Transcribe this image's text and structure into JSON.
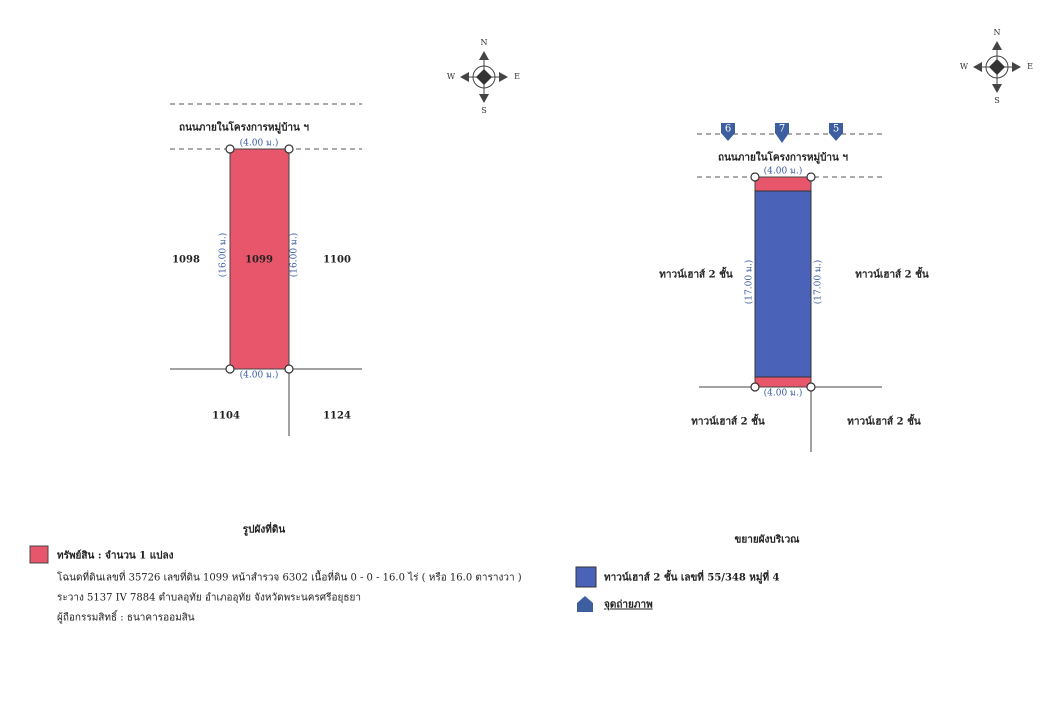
{
  "left_map": {
    "compass": {
      "n": "N",
      "e": "E",
      "s": "S",
      "w": "W"
    },
    "road": "ถนนภายในโครงการหมู่บ้าน ฯ",
    "dims": {
      "top": "(4.00 ม.)",
      "left": "(16.00 ม.)",
      "right": "(16.00 ม.)",
      "bottom": "(4.00 ม.)"
    },
    "plot": "1099",
    "neighbors": {
      "west": "1098",
      "east": "1100",
      "south_west": "1104",
      "south_east": "1124"
    }
  },
  "right_map": {
    "compass": {
      "n": "N",
      "e": "E",
      "s": "S",
      "w": "W"
    },
    "photo_points": [
      "6",
      "7",
      "5"
    ],
    "road": "ถนนภายในโครงการหมู่บ้าน ฯ",
    "dims": {
      "top": "(4.00 ม.)",
      "left": "(17.00 ม.)",
      "right": "(17.00 ม.)",
      "bottom": "(4.00 ม.)"
    },
    "neighbors": {
      "west": "ทาวน์เฮาส์ 2 ชั้น",
      "east": "ทาวน์เฮาส์ 2 ชั้น",
      "south_west": "ทาวน์เฮาส์ 2 ชั้น",
      "south_east": "ทาวน์เฮาส์ 2 ชั้น"
    }
  },
  "left_legend": {
    "title": "รูปผังที่ดิน",
    "item": "ทรัพย์สิน : จำนวน 1 แปลง",
    "lines": [
      "โฉนดที่ดินเลขที่ 35726 เลขที่ดิน 1099 หน้าสำรวจ 6302 เนื้อที่ดิน 0 - 0 - 16.0 ไร่ ( หรือ 16.0 ตารางวา )",
      "ระวาง 5137 IV 7884 ตำบลอุทัย อำเภออุทัย จังหวัดพระนครศรีอยุธยา",
      "ผู้ถือกรรมสิทธิ์ : ธนาคารออมสิน"
    ]
  },
  "right_legend": {
    "title": "ขยายผังบริเวณ",
    "item": "ทาวน์เฮาส์ 2 ชั้น เลขที่ 55/348 หมู่ที่ 4",
    "photo": "จุดถ่ายภาพ"
  }
}
